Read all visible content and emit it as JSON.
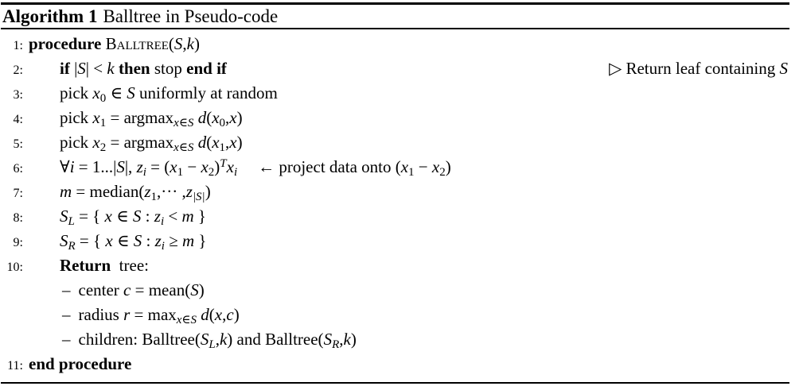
{
  "colors": {
    "text": "#000000",
    "rule": "#000000",
    "background": "#ffffff"
  },
  "header": {
    "label": "Algorithm 1",
    "title": "Balltree in Pseudo-code"
  },
  "lines": [
    {
      "num": "1:",
      "level": 0,
      "segs": [
        {
          "c": "kw",
          "t": "procedure "
        },
        {
          "c": "sc",
          "t": "Balltree"
        },
        {
          "c": "rm",
          "t": "("
        },
        {
          "c": "it",
          "t": "S"
        },
        {
          "c": "rm",
          "t": ","
        },
        {
          "c": "it",
          "t": "k"
        },
        {
          "c": "rm",
          "t": ")"
        }
      ]
    },
    {
      "num": "2:",
      "level": 1,
      "segs": [
        {
          "c": "kw",
          "t": "if "
        },
        {
          "c": "rm",
          "t": "|"
        },
        {
          "c": "it",
          "t": "S"
        },
        {
          "c": "rm",
          "t": "| < "
        },
        {
          "c": "it",
          "t": "k"
        },
        {
          "c": "kw",
          "t": " then "
        },
        {
          "c": "rm",
          "t": "stop "
        },
        {
          "c": "kw",
          "t": "end if"
        }
      ],
      "comment": [
        {
          "c": "rm",
          "t": "▷ Return leaf containing "
        },
        {
          "c": "it",
          "t": "S"
        }
      ]
    },
    {
      "num": "3:",
      "level": 1,
      "segs": [
        {
          "c": "rm",
          "t": "pick "
        },
        {
          "c": "it",
          "t": "x"
        },
        {
          "c": "sub",
          "t": "0"
        },
        {
          "c": "rm",
          "t": " ∈ "
        },
        {
          "c": "it",
          "t": "S"
        },
        {
          "c": "rm",
          "t": " uniformly at random"
        }
      ]
    },
    {
      "num": "4:",
      "level": 1,
      "segs": [
        {
          "c": "rm",
          "t": "pick "
        },
        {
          "c": "it",
          "t": "x"
        },
        {
          "c": "sub",
          "t": "1"
        },
        {
          "c": "rm",
          "t": " = argmax"
        },
        {
          "c": "subm",
          "t": "x∈S"
        },
        {
          "c": "rm",
          "t": " "
        },
        {
          "c": "it",
          "t": "d"
        },
        {
          "c": "rm",
          "t": "("
        },
        {
          "c": "it",
          "t": "x"
        },
        {
          "c": "sub",
          "t": "0"
        },
        {
          "c": "rm",
          "t": ","
        },
        {
          "c": "it",
          "t": "x"
        },
        {
          "c": "rm",
          "t": ")"
        }
      ]
    },
    {
      "num": "5:",
      "level": 1,
      "segs": [
        {
          "c": "rm",
          "t": "pick "
        },
        {
          "c": "it",
          "t": "x"
        },
        {
          "c": "sub",
          "t": "2"
        },
        {
          "c": "rm",
          "t": " = argmax"
        },
        {
          "c": "subm",
          "t": "x∈S"
        },
        {
          "c": "rm",
          "t": " "
        },
        {
          "c": "it",
          "t": "d"
        },
        {
          "c": "rm",
          "t": "("
        },
        {
          "c": "it",
          "t": "x"
        },
        {
          "c": "sub",
          "t": "1"
        },
        {
          "c": "rm",
          "t": ","
        },
        {
          "c": "it",
          "t": "x"
        },
        {
          "c": "rm",
          "t": ")"
        }
      ]
    },
    {
      "num": "6:",
      "level": 1,
      "segs": [
        {
          "c": "rm",
          "t": "∀"
        },
        {
          "c": "it",
          "t": "i"
        },
        {
          "c": "rm",
          "t": " = 1...|"
        },
        {
          "c": "it",
          "t": "S"
        },
        {
          "c": "rm",
          "t": "|, "
        },
        {
          "c": "it",
          "t": "z"
        },
        {
          "c": "subi",
          "t": "i"
        },
        {
          "c": "rm",
          "t": " = ("
        },
        {
          "c": "it",
          "t": "x"
        },
        {
          "c": "sub",
          "t": "1"
        },
        {
          "c": "rm",
          "t": " − "
        },
        {
          "c": "it",
          "t": "x"
        },
        {
          "c": "sub",
          "t": "2"
        },
        {
          "c": "rm",
          "t": ")"
        },
        {
          "c": "sup",
          "t": "T"
        },
        {
          "c": "it",
          "t": "x"
        },
        {
          "c": "subi",
          "t": "i"
        },
        {
          "c": "gap",
          "t": ""
        },
        {
          "c": "rm",
          "t": "← project data onto ("
        },
        {
          "c": "it",
          "t": "x"
        },
        {
          "c": "sub",
          "t": "1"
        },
        {
          "c": "rm",
          "t": " − "
        },
        {
          "c": "it",
          "t": "x"
        },
        {
          "c": "sub",
          "t": "2"
        },
        {
          "c": "rm",
          "t": ")"
        }
      ]
    },
    {
      "num": "7:",
      "level": 1,
      "segs": [
        {
          "c": "it",
          "t": "m"
        },
        {
          "c": "rm",
          "t": " = median("
        },
        {
          "c": "it",
          "t": "z"
        },
        {
          "c": "sub",
          "t": "1"
        },
        {
          "c": "rm",
          "t": ",··· ,"
        },
        {
          "c": "it",
          "t": "z"
        },
        {
          "c": "subm",
          "t": "|S|"
        },
        {
          "c": "rm",
          "t": ")"
        }
      ]
    },
    {
      "num": "8:",
      "level": 1,
      "segs": [
        {
          "c": "it",
          "t": "S"
        },
        {
          "c": "subi",
          "t": "L"
        },
        {
          "c": "rm",
          "t": " = { "
        },
        {
          "c": "it",
          "t": "x"
        },
        {
          "c": "rm",
          "t": " ∈ "
        },
        {
          "c": "it",
          "t": "S"
        },
        {
          "c": "rm",
          "t": " : "
        },
        {
          "c": "it",
          "t": "z"
        },
        {
          "c": "subi",
          "t": "i"
        },
        {
          "c": "rm",
          "t": " < "
        },
        {
          "c": "it",
          "t": "m"
        },
        {
          "c": "rm",
          "t": " }"
        }
      ]
    },
    {
      "num": "9:",
      "level": 1,
      "segs": [
        {
          "c": "it",
          "t": "S"
        },
        {
          "c": "subi",
          "t": "R"
        },
        {
          "c": "rm",
          "t": " = { "
        },
        {
          "c": "it",
          "t": "x"
        },
        {
          "c": "rm",
          "t": " ∈ "
        },
        {
          "c": "it",
          "t": "S"
        },
        {
          "c": "rm",
          "t": " : "
        },
        {
          "c": "it",
          "t": "z"
        },
        {
          "c": "subi",
          "t": "i"
        },
        {
          "c": "rm",
          "t": " ≥ "
        },
        {
          "c": "it",
          "t": "m"
        },
        {
          "c": "rm",
          "t": " }"
        }
      ]
    },
    {
      "num": "10:",
      "level": 1,
      "segs": [
        {
          "c": "kw",
          "t": "Return"
        },
        {
          "c": "rm",
          "t": "  tree:"
        }
      ]
    },
    {
      "num": "",
      "level": 2,
      "segs": [
        {
          "c": "dash",
          "t": "–"
        },
        {
          "c": "rm",
          "t": "center "
        },
        {
          "c": "it",
          "t": "c"
        },
        {
          "c": "rm",
          "t": " = mean("
        },
        {
          "c": "it",
          "t": "S"
        },
        {
          "c": "rm",
          "t": ")"
        }
      ]
    },
    {
      "num": "",
      "level": 2,
      "segs": [
        {
          "c": "dash",
          "t": "–"
        },
        {
          "c": "rm",
          "t": "radius "
        },
        {
          "c": "it",
          "t": "r"
        },
        {
          "c": "rm",
          "t": " = max"
        },
        {
          "c": "subm",
          "t": "x∈S"
        },
        {
          "c": "rm",
          "t": " "
        },
        {
          "c": "it",
          "t": "d"
        },
        {
          "c": "rm",
          "t": "("
        },
        {
          "c": "it",
          "t": "x"
        },
        {
          "c": "rm",
          "t": ","
        },
        {
          "c": "it",
          "t": "c"
        },
        {
          "c": "rm",
          "t": ")"
        }
      ]
    },
    {
      "num": "",
      "level": 2,
      "segs": [
        {
          "c": "dash",
          "t": "–"
        },
        {
          "c": "rm",
          "t": "children: Balltree("
        },
        {
          "c": "it",
          "t": "S"
        },
        {
          "c": "subi",
          "t": "L"
        },
        {
          "c": "rm",
          "t": ","
        },
        {
          "c": "it",
          "t": "k"
        },
        {
          "c": "rm",
          "t": ") and Balltree("
        },
        {
          "c": "it",
          "t": "S"
        },
        {
          "c": "subi",
          "t": "R"
        },
        {
          "c": "rm",
          "t": ","
        },
        {
          "c": "it",
          "t": "k"
        },
        {
          "c": "rm",
          "t": ")"
        }
      ]
    },
    {
      "num": "11:",
      "level": 0,
      "segs": [
        {
          "c": "kw",
          "t": "end procedure"
        }
      ]
    }
  ]
}
